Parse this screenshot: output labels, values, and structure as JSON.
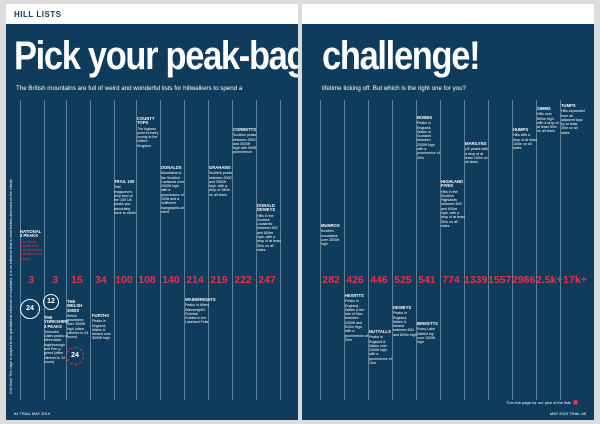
{
  "section": "HILL LISTS",
  "headline_left": "Pick your peak-bagging",
  "headline_right": "challenge!",
  "standfirst_left": "The British mountains are full of weird and wonderful lists for hillwalkers to spend a",
  "standfirst_right": "lifetime ticking off. But which is the right one for you?",
  "left_numbers": [
    "3",
    "3",
    "15",
    "34",
    "100",
    "108",
    "140",
    "214",
    "219",
    "222",
    "247"
  ],
  "right_numbers": [
    "282",
    "426",
    "446",
    "525",
    "541",
    "774",
    "1339",
    "1557",
    "2986",
    "2.5k+",
    "17k+"
  ],
  "rings": [
    "24",
    "12",
    "24"
  ],
  "entries": {
    "national": {
      "title": "NATIONAL 3 PEAKS",
      "text": "Ben Nevis, Scafell Pike and Snowdon (climbed in 24 hours)"
    },
    "yorkshire": {
      "title": "THE YORKSHIRE 3 PEAKS",
      "text": "Yorkshire Dales peaks of Whernside, Ingleborough and Pen-y-ghent (often climbed in 12 hours)"
    },
    "welsh": {
      "title": "THE WELSH 3000S",
      "text": "Welsh mountains over 3000ft high (often climbed in 24 hours)"
    },
    "furths": {
      "title": "FURTHS",
      "text": "Peaks in England, Wales & Ireland over 3000ft high"
    },
    "trail": {
      "title": "TRAIL 100",
      "text": "Trail magazine's very best of the 100 UK peaks you absolutely have to climb!"
    },
    "county": {
      "title": "COUNTY TOPS",
      "text": "The highest point in every county in the United Kingdom"
    },
    "donalds": {
      "title": "DONALDS",
      "text": "Mountains in the Scottish Lowlands over 2000ft high with a prominance of 100ft and a 'sufficient topographic-al merit'"
    },
    "wainwrights": {
      "title": "WAINWRIGHTS",
      "text": "Peaks in Alfred Wainwright's Pictorial Guides to the Lakeland Fells"
    },
    "grahams": {
      "title": "GRAHAMS",
      "text": "Scottish peaks between 2000 and 2500ft high, with a drop of 150m on all sides"
    },
    "corbetts": {
      "title": "CORBETTS",
      "text": "Scottish peaks between 2500 and 3000ft high with 500ft prominence"
    },
    "deweys": {
      "title": "DONALD DEWEYS",
      "text": "Hills in the Scottish Lowlands between 500 and 609m high, with a drop of at least 30m on all sides"
    },
    "murros": {
      "title": "MUNROS",
      "text": "Scottish mountains over 3000ft high"
    },
    "hewitts": {
      "title": "HEWITTS",
      "text": "Peaks in England, Wales & the Isle of Man between 2000ft and 610m high, with a prominence of 30m"
    },
    "nuttalls": {
      "title": "NUTTALLS",
      "text": "Peaks in England & Wales over 2000ft high, with a prominence of 15m"
    },
    "dewey": {
      "title": "DEWEYS",
      "text": "Peaks in England, Wales & Ireland between 500 and 609m high"
    },
    "birketts": {
      "title": "BIRKETTS",
      "text": "Every Lake District top over 1000ft high"
    },
    "bobbs": {
      "title": "BOBBS",
      "text": "Peaks in England, Wales or Scotland between 2000ft high with a prominence of 30m"
    },
    "highland": {
      "title": "HIGHLAND FIVES",
      "text": "Hills in the Scottish Highlands between 500 and 600m high, with a drop of at least 30m on all sides"
    },
    "marilyns": {
      "title": "MARILYNS",
      "text": "UK peaks with a drop of at least 150m on all sides"
    },
    "humps": {
      "title": "HUMPS",
      "text": "Hills with a drop of at least 100m on all sides"
    },
    "simms": {
      "title": "SIMMS",
      "text": "Hills over 600m high with a drop of at least 30m on all sides"
    },
    "tumps": {
      "title": "TUMPS",
      "text": "Hills separated from all adjacent tops by at least 30m on all sides"
    }
  },
  "sidecaption": "Crib Goch This ridge is subject to the gravitational influence of mountains. It is an influence that is nevertheless dominant on the hillside.",
  "footer_left": "64 TRAIL MAY 2019",
  "footer_right": "MAY 2019 TRAIL 65",
  "next_page": "Turn the page for our pick of the lists"
}
